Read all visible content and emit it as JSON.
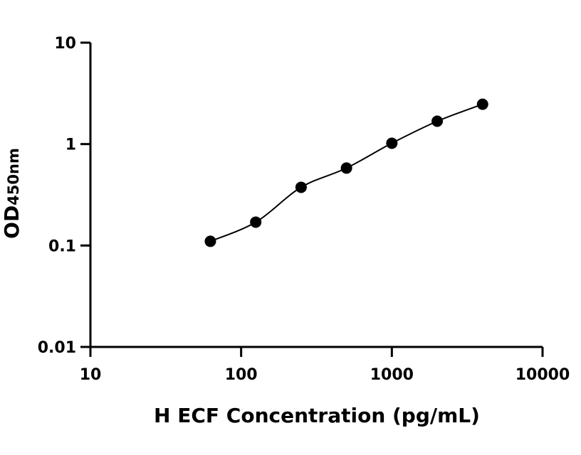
{
  "chart_data": {
    "type": "scatter",
    "xlabel": "H ECF Concentration (pg/mL)",
    "ylabel_main": "OD",
    "ylabel_sub": "450nm",
    "xscale": "log",
    "yscale": "log",
    "xlim": [
      10,
      10000
    ],
    "ylim": [
      0.01,
      10
    ],
    "x_ticks": [
      10,
      100,
      1000,
      10000
    ],
    "x_tick_labels": [
      "10",
      "100",
      "1000",
      "10000"
    ],
    "y_ticks": [
      0.01,
      0.1,
      1,
      10
    ],
    "y_tick_labels": [
      "0.01",
      "0.1",
      "1",
      "10"
    ],
    "grid": false,
    "legend": "none",
    "series": [
      {
        "x": [
          62.5,
          125,
          250,
          500,
          1000,
          2000,
          4000
        ],
        "y": [
          0.11,
          0.17,
          0.375,
          0.58,
          1.02,
          1.68,
          2.47
        ],
        "fit": "smooth curve",
        "marker": "filled-circle",
        "color": "#000000"
      }
    ]
  }
}
